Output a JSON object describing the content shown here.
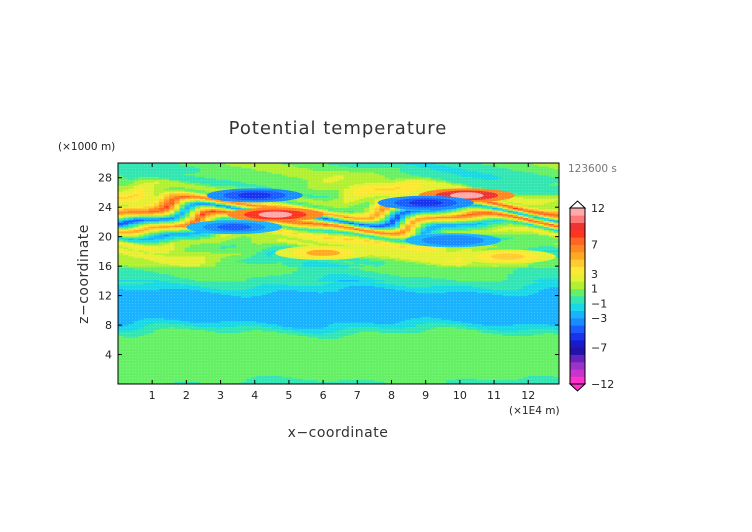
{
  "chart_data": {
    "type": "heatmap",
    "title": "Potential temperature",
    "xlabel": "x−coordinate",
    "ylabel": "z−coordinate",
    "x_unit": "(×1E4 m)",
    "y_unit": "(×1000 m)",
    "time_label": "123600 s",
    "xlim": [
      0,
      12.9
    ],
    "ylim": [
      0,
      30
    ],
    "x_ticks": [
      "1",
      "2",
      "3",
      "4",
      "5",
      "6",
      "7",
      "8",
      "9",
      "10",
      "11",
      "12"
    ],
    "y_ticks": [
      "4",
      "8",
      "12",
      "16",
      "20",
      "24",
      "28"
    ],
    "colorbar": {
      "range": [
        -12,
        12
      ],
      "levels": [
        -12,
        -11,
        -10,
        -9,
        -8,
        -7,
        -6,
        -5,
        -4,
        -3,
        -2,
        -1,
        0,
        1,
        2,
        3,
        4,
        5,
        6,
        7,
        8,
        9,
        10,
        11,
        12
      ],
      "labeled_ticks": [
        "12",
        "7",
        "3",
        "1",
        "−1",
        "−3",
        "−7",
        "−12"
      ],
      "colors": [
        "#ff33cc",
        "#cc33cc",
        "#9933cc",
        "#6622bb",
        "#2211aa",
        "#1a1acc",
        "#1a33ee",
        "#1a5cff",
        "#1a8cff",
        "#1ab3ff",
        "#1ad9e6",
        "#33e6b3",
        "#66f066",
        "#b3f033",
        "#e6f033",
        "#ffe833",
        "#ffcc33",
        "#ffaa22",
        "#ff8822",
        "#ff6622",
        "#ff3322",
        "#ee3333",
        "#ff7777",
        "#ffaaaa"
      ]
    },
    "band_profile": {
      "z": [
        0,
        1,
        2,
        3,
        4,
        5,
        6,
        7,
        8,
        9,
        10,
        11,
        12,
        13,
        14,
        15,
        16,
        17,
        18,
        19,
        20,
        21,
        22,
        23,
        24,
        25,
        26,
        27,
        28,
        29,
        30
      ],
      "value": [
        -0.5,
        0.5,
        1.0,
        0.5,
        0.2,
        0.5,
        1.0,
        0.0,
        -1.5,
        -3.0,
        -3.0,
        -3.0,
        -3.0,
        -1.5,
        -0.5,
        0.0,
        1.0,
        0.0,
        2.0,
        1.0,
        3.0,
        -2.0,
        7.0,
        -4.0,
        7.0,
        1.0,
        3.0,
        0.5,
        1.0,
        0.0,
        0.0
      ]
    },
    "features": [
      {
        "x": 4.6,
        "z": 23.0,
        "value": 11
      },
      {
        "x": 10.2,
        "z": 25.6,
        "value": 12
      },
      {
        "x": 4.0,
        "z": 25.6,
        "value": -6
      },
      {
        "x": 9.0,
        "z": 24.6,
        "value": -6
      },
      {
        "x": 3.4,
        "z": 21.3,
        "value": -5
      },
      {
        "x": 9.8,
        "z": 19.5,
        "value": -4
      },
      {
        "x": 6.0,
        "z": 17.8,
        "value": 5
      },
      {
        "x": 11.4,
        "z": 17.3,
        "value": 4
      }
    ]
  }
}
